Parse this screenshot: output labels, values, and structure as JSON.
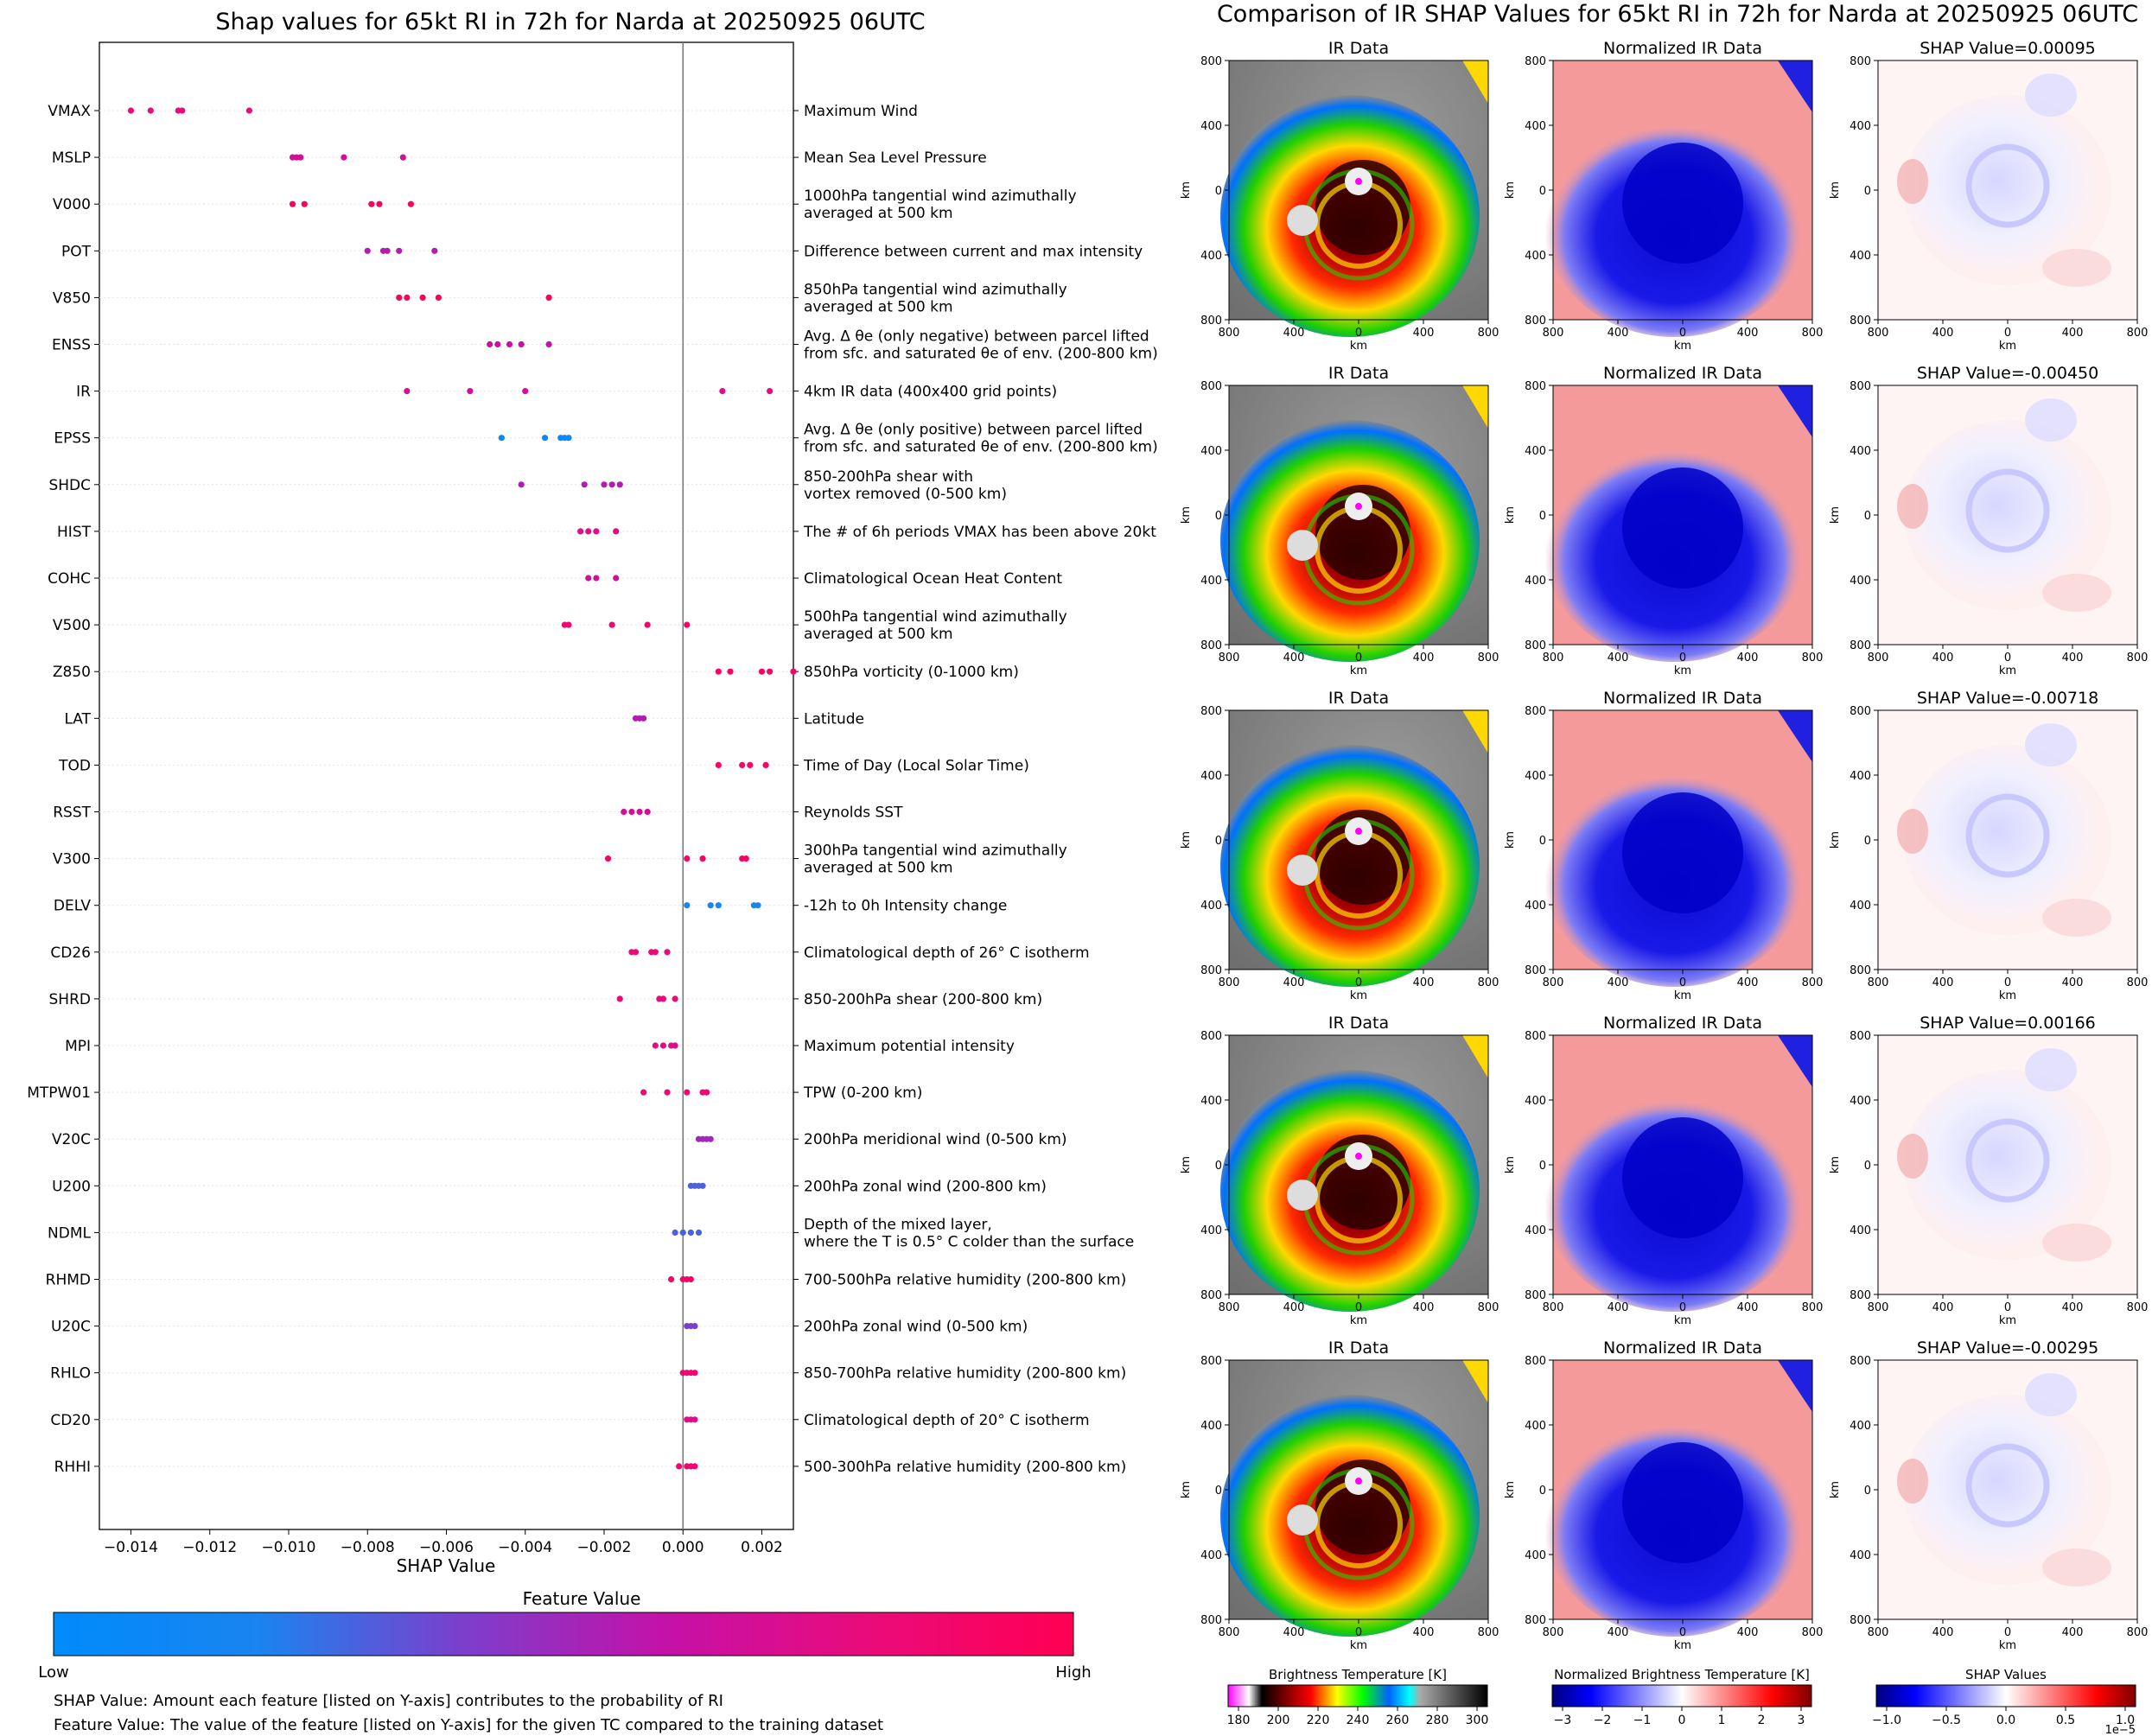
{
  "left": {
    "title": "Shap values for 65kt RI in 72h for Narda at 20250925 06UTC",
    "xlabel": "SHAP Value",
    "colorbar_title": "Feature Value",
    "colorbar_low": "Low",
    "colorbar_high": "High",
    "note1": "SHAP Value: Amount each feature [listed on Y-axis] contributes to the probability of RI",
    "note2": "Feature Value: The value of the feature [listed on Y-axis] for the given TC compared to the training dataset"
  },
  "right": {
    "title": "Comparison of IR SHAP Values for 65kt RI in 72h for Narda at 20250925 06UTC",
    "col_titles": [
      "IR Data",
      "Normalized IR Data"
    ],
    "shap_titles": [
      "SHAP Value=0.00095",
      "SHAP Value=-0.00450",
      "SHAP Value=-0.00718",
      "SHAP Value=0.00166",
      "SHAP Value=-0.00295"
    ],
    "axis_label": "km",
    "axis_ticks": [
      "800",
      "400",
      "0",
      "400",
      "800"
    ],
    "cbar1_title": "Brightness Temperature [K]",
    "cbar1_ticks": [
      "180",
      "200",
      "220",
      "240",
      "260",
      "280",
      "300"
    ],
    "cbar2_title": "Normalized Brightness Temperature [K]",
    "cbar2_ticks": [
      "−3",
      "−2",
      "−1",
      "0",
      "1",
      "2",
      "3"
    ],
    "cbar3_title": "SHAP Values",
    "cbar3_ticks": [
      "−1.0",
      "−0.5",
      "0.0",
      "0.5",
      "1.0"
    ],
    "cbar3_exp": "1e−5"
  },
  "colors": {
    "low": "#008bfb",
    "mid": "#7b2fbe",
    "high": "#ff0052"
  },
  "chart_data": {
    "type": "scatter",
    "xlim": [
      -0.0148,
      0.0028
    ],
    "xticks": [
      -0.014,
      -0.012,
      -0.01,
      -0.008,
      -0.006,
      -0.004,
      -0.002,
      0.0,
      0.002
    ],
    "xtick_labels": [
      "−0.014",
      "−0.012",
      "−0.010",
      "−0.008",
      "−0.006",
      "−0.004",
      "−0.002",
      "0.000",
      "0.002"
    ],
    "features": [
      {
        "name": "VMAX",
        "desc": [
          "Maximum Wind"
        ],
        "points": [
          [
            -0.014,
            0.8
          ],
          [
            -0.0135,
            0.8
          ],
          [
            -0.0128,
            0.8
          ],
          [
            -0.0127,
            0.8
          ],
          [
            -0.011,
            0.8
          ]
        ]
      },
      {
        "name": "MSLP",
        "desc": [
          "Mean Sea Level Pressure"
        ],
        "points": [
          [
            -0.0099,
            0.7
          ],
          [
            -0.0098,
            0.7
          ],
          [
            -0.0097,
            0.7
          ],
          [
            -0.0086,
            0.7
          ],
          [
            -0.0071,
            0.7
          ]
        ]
      },
      {
        "name": "V000",
        "desc": [
          "1000hPa tangential wind azimuthally",
          "averaged at 500 km"
        ],
        "points": [
          [
            -0.0099,
            0.95
          ],
          [
            -0.0096,
            0.95
          ],
          [
            -0.0079,
            0.95
          ],
          [
            -0.0077,
            0.95
          ],
          [
            -0.0069,
            0.95
          ]
        ]
      },
      {
        "name": "POT",
        "desc": [
          "Difference between current and max intensity"
        ],
        "points": [
          [
            -0.008,
            0.55
          ],
          [
            -0.0076,
            0.55
          ],
          [
            -0.0075,
            0.55
          ],
          [
            -0.0072,
            0.55
          ],
          [
            -0.0063,
            0.55
          ]
        ]
      },
      {
        "name": "V850",
        "desc": [
          "850hPa tangential wind azimuthally",
          "averaged at 500 km"
        ],
        "points": [
          [
            -0.0072,
            0.95
          ],
          [
            -0.007,
            0.95
          ],
          [
            -0.0066,
            0.95
          ],
          [
            -0.0062,
            0.95
          ],
          [
            -0.0034,
            0.95
          ]
        ]
      },
      {
        "name": "ENSS",
        "desc": [
          "Avg. Δ θe (only negative) between parcel lifted",
          "from sfc. and saturated θe of env. (200-800 km)"
        ],
        "points": [
          [
            -0.0049,
            0.6
          ],
          [
            -0.0047,
            0.6
          ],
          [
            -0.0044,
            0.6
          ],
          [
            -0.0041,
            0.6
          ],
          [
            -0.0034,
            0.6
          ]
        ]
      },
      {
        "name": "IR",
        "desc": [
          "4km IR data (400x400 grid points)"
        ],
        "points": [
          [
            -0.007,
            0.7
          ],
          [
            -0.0054,
            0.7
          ],
          [
            -0.004,
            0.7
          ],
          [
            0.001,
            0.75
          ],
          [
            0.0022,
            0.8
          ]
        ]
      },
      {
        "name": "EPSS",
        "desc": [
          "Avg. Δ θe (only positive) between parcel lifted",
          "from sfc. and saturated θe of env. (200-800 km)"
        ],
        "points": [
          [
            -0.0046,
            0.1
          ],
          [
            -0.0035,
            0.1
          ],
          [
            -0.0031,
            0.1
          ],
          [
            -0.003,
            0.1
          ],
          [
            -0.0029,
            0.1
          ]
        ]
      },
      {
        "name": "SHDC",
        "desc": [
          "850-200hPa shear with",
          "vortex removed (0-500 km)"
        ],
        "points": [
          [
            -0.0041,
            0.55
          ],
          [
            -0.0025,
            0.55
          ],
          [
            -0.002,
            0.55
          ],
          [
            -0.0018,
            0.55
          ],
          [
            -0.0016,
            0.55
          ]
        ]
      },
      {
        "name": "HIST",
        "desc": [
          "The # of 6h periods VMAX has been above 20kt"
        ],
        "points": [
          [
            -0.0026,
            0.75
          ],
          [
            -0.0024,
            0.75
          ],
          [
            -0.0022,
            0.75
          ],
          [
            -0.0017,
            0.75
          ]
        ]
      },
      {
        "name": "COHC",
        "desc": [
          "Climatological Ocean Heat Content"
        ],
        "points": [
          [
            -0.0024,
            0.65
          ],
          [
            -0.0022,
            0.65
          ],
          [
            -0.0017,
            0.65
          ]
        ]
      },
      {
        "name": "V500",
        "desc": [
          "500hPa tangential wind azimuthally",
          "averaged at 500 km"
        ],
        "points": [
          [
            -0.003,
            0.85
          ],
          [
            -0.0029,
            0.85
          ],
          [
            -0.0018,
            0.85
          ],
          [
            -0.0009,
            0.85
          ],
          [
            0.0001,
            0.9
          ]
        ]
      },
      {
        "name": "Z850",
        "desc": [
          "850hPa vorticity (0-1000 km)"
        ],
        "points": [
          [
            0.0009,
            0.9
          ],
          [
            0.0012,
            0.9
          ],
          [
            0.002,
            0.9
          ],
          [
            0.0022,
            0.9
          ],
          [
            0.0028,
            0.9
          ]
        ]
      },
      {
        "name": "LAT",
        "desc": [
          "Latitude"
        ],
        "points": [
          [
            -0.0012,
            0.55
          ],
          [
            -0.0011,
            0.55
          ],
          [
            -0.001,
            0.55
          ]
        ]
      },
      {
        "name": "TOD",
        "desc": [
          "Time of Day (Local Solar Time)"
        ],
        "points": [
          [
            0.0009,
            0.9
          ],
          [
            0.0015,
            0.9
          ],
          [
            0.0017,
            0.9
          ],
          [
            0.0021,
            0.9
          ]
        ]
      },
      {
        "name": "RSST",
        "desc": [
          "Reynolds SST"
        ],
        "points": [
          [
            -0.0015,
            0.7
          ],
          [
            -0.0013,
            0.7
          ],
          [
            -0.0011,
            0.7
          ],
          [
            -0.0009,
            0.7
          ]
        ]
      },
      {
        "name": "V300",
        "desc": [
          "300hPa tangential wind azimuthally",
          "averaged at 500 km"
        ],
        "points": [
          [
            -0.0019,
            0.9
          ],
          [
            0.0001,
            0.9
          ],
          [
            0.0005,
            0.9
          ],
          [
            0.0015,
            0.9
          ],
          [
            0.0016,
            0.9
          ]
        ]
      },
      {
        "name": "DELV",
        "desc": [
          "-12h to 0h Intensity change"
        ],
        "points": [
          [
            0.0001,
            0.2
          ],
          [
            0.0007,
            0.2
          ],
          [
            0.0009,
            0.2
          ],
          [
            0.0018,
            0.2
          ],
          [
            0.0019,
            0.2
          ]
        ]
      },
      {
        "name": "CD26",
        "desc": [
          "Climatological depth of 26° C isotherm"
        ],
        "points": [
          [
            -0.0013,
            0.8
          ],
          [
            -0.0012,
            0.8
          ],
          [
            -0.0008,
            0.8
          ],
          [
            -0.0007,
            0.8
          ],
          [
            -0.0004,
            0.8
          ]
        ]
      },
      {
        "name": "SHRD",
        "desc": [
          "850-200hPa shear (200-800 km)"
        ],
        "points": [
          [
            -0.0016,
            0.8
          ],
          [
            -0.0006,
            0.8
          ],
          [
            -0.0005,
            0.8
          ],
          [
            -0.0002,
            0.8
          ]
        ]
      },
      {
        "name": "MPI",
        "desc": [
          "Maximum potential intensity"
        ],
        "points": [
          [
            -0.0007,
            0.75
          ],
          [
            -0.0005,
            0.75
          ],
          [
            -0.0003,
            0.75
          ],
          [
            -0.0002,
            0.75
          ]
        ]
      },
      {
        "name": "MTPW01",
        "desc": [
          "TPW (0-200 km)"
        ],
        "points": [
          [
            -0.001,
            0.8
          ],
          [
            -0.0004,
            0.8
          ],
          [
            0.0001,
            0.85
          ],
          [
            0.0005,
            0.85
          ],
          [
            0.0006,
            0.85
          ]
        ]
      },
      {
        "name": "V20C",
        "desc": [
          "200hPa meridional wind (0-500 km)"
        ],
        "points": [
          [
            0.0004,
            0.5
          ],
          [
            0.0005,
            0.5
          ],
          [
            0.0006,
            0.5
          ],
          [
            0.0007,
            0.5
          ]
        ]
      },
      {
        "name": "U200",
        "desc": [
          "200hPa zonal wind (200-800 km)"
        ],
        "points": [
          [
            0.0002,
            0.3
          ],
          [
            0.0003,
            0.3
          ],
          [
            0.0004,
            0.3
          ],
          [
            0.0005,
            0.3
          ]
        ]
      },
      {
        "name": "NDML",
        "desc": [
          "Depth of the mixed layer,",
          "where the T is 0.5° C colder than the surface"
        ],
        "points": [
          [
            -0.0002,
            0.3
          ],
          [
            0.0,
            0.3
          ],
          [
            0.0002,
            0.3
          ],
          [
            0.0004,
            0.3
          ]
        ]
      },
      {
        "name": "RHMD",
        "desc": [
          "700-500hPa relative humidity (200-800 km)"
        ],
        "points": [
          [
            -0.0003,
            0.9
          ],
          [
            0.0,
            0.9
          ],
          [
            0.0001,
            0.9
          ],
          [
            0.0002,
            0.9
          ]
        ]
      },
      {
        "name": "U20C",
        "desc": [
          "200hPa zonal wind (0-500 km)"
        ],
        "points": [
          [
            0.0001,
            0.4
          ],
          [
            0.0002,
            0.4
          ],
          [
            0.0003,
            0.4
          ]
        ]
      },
      {
        "name": "RHLO",
        "desc": [
          "850-700hPa relative humidity (200-800 km)"
        ],
        "points": [
          [
            0.0,
            0.85
          ],
          [
            0.0001,
            0.85
          ],
          [
            0.0002,
            0.85
          ],
          [
            0.0003,
            0.85
          ]
        ]
      },
      {
        "name": "CD20",
        "desc": [
          "Climatological depth of 20° C isotherm"
        ],
        "points": [
          [
            0.0001,
            0.75
          ],
          [
            0.0002,
            0.75
          ],
          [
            0.0003,
            0.75
          ]
        ]
      },
      {
        "name": "RHHI",
        "desc": [
          "500-300hPa relative humidity (200-800 km)"
        ],
        "points": [
          [
            -0.0001,
            0.85
          ],
          [
            0.0001,
            0.85
          ],
          [
            0.0002,
            0.85
          ],
          [
            0.0003,
            0.85
          ]
        ]
      }
    ]
  }
}
